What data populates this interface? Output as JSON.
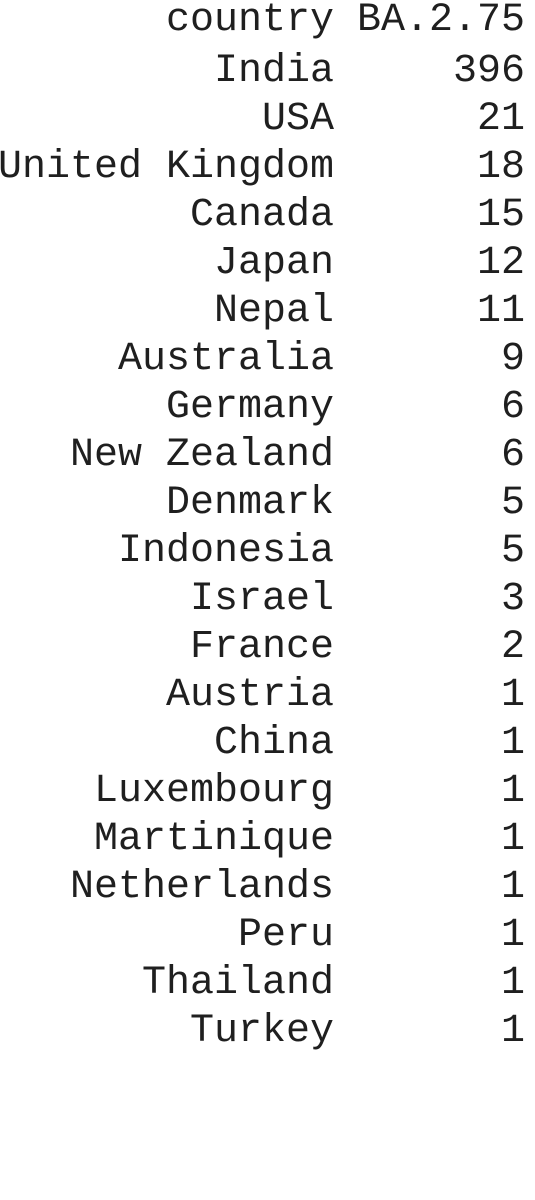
{
  "table": {
    "headers": {
      "country": "country",
      "variant": "BA.2.75"
    },
    "rows": [
      {
        "country": "India",
        "count": "396"
      },
      {
        "country": "USA",
        "count": "21"
      },
      {
        "country": "United Kingdom",
        "count": "18"
      },
      {
        "country": "Canada",
        "count": "15"
      },
      {
        "country": "Japan",
        "count": "12"
      },
      {
        "country": "Nepal",
        "count": "11"
      },
      {
        "country": "Australia",
        "count": "9"
      },
      {
        "country": "Germany",
        "count": "6"
      },
      {
        "country": "New Zealand",
        "count": "6"
      },
      {
        "country": "Denmark",
        "count": "5"
      },
      {
        "country": "Indonesia",
        "count": "5"
      },
      {
        "country": "Israel",
        "count": "3"
      },
      {
        "country": "France",
        "count": "2"
      },
      {
        "country": "Austria",
        "count": "1"
      },
      {
        "country": "China",
        "count": "1"
      },
      {
        "country": "Luxembourg",
        "count": "1"
      },
      {
        "country": "Martinique",
        "count": "1"
      },
      {
        "country": "Netherlands",
        "count": "1"
      },
      {
        "country": "Peru",
        "count": "1"
      },
      {
        "country": "Thailand",
        "count": "1"
      },
      {
        "country": "Turkey",
        "count": "1"
      }
    ]
  }
}
